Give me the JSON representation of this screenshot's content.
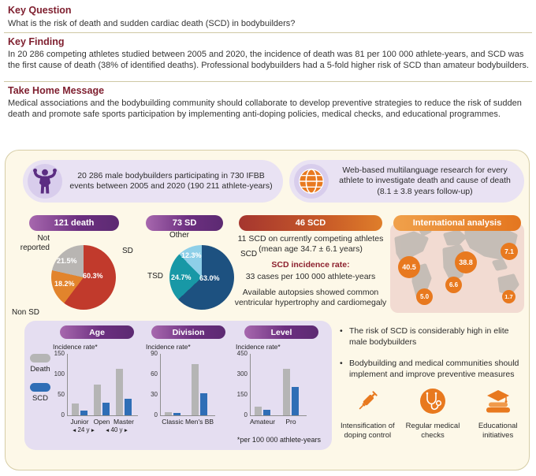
{
  "colors": {
    "heading_maroon": "#7e1e2e",
    "panel_cream": "#fdf8e8",
    "lavender_banner": "#e9e2f3",
    "lavender_box": "#e5def1",
    "rose_box": "#f2dbd2",
    "purple_pill": "#6c2f80",
    "red_pill": "#a5362f",
    "orange_accent": "#e8791f",
    "bar_death_gray": "#b5b5b5",
    "bar_scd_blue": "#2f6eb6"
  },
  "header": {
    "key_question": {
      "title": "Key Question",
      "text": "What is the risk of death and sudden cardiac death (SCD) in bodybuilders?"
    },
    "key_finding": {
      "title": "Key Finding",
      "text": "In 20 286 competing athletes studied between 2005 and 2020, the incidence of death was 81 per 100 000 athlete-years, and SCD was the first cause of death (38% of identified deaths). Professional bodybuilders had a 5-fold higher risk of SCD than amateur bodybuilders."
    },
    "take_home": {
      "title": "Take Home Message",
      "text": "Medical associations and the bodybuilding community should collaborate to develop preventive strategies to reduce the risk of sudden death and promote safe sports participation by implementing anti-doping policies, medical checks, and educational programmes."
    }
  },
  "banners": {
    "cohort": "20 286 male bodybuilders participating in 730 IFBB events between 2005 and 2020 (190 211 athlete-years)",
    "method": "Web-based multilanguage research for every athlete to investigate death and cause of death (8.1 ± 3.8 years follow-up)"
  },
  "scd_panel": {
    "line1": "11 SCD on currently competing athletes (mean age 34.7 ± 6.1 years)",
    "line2": "SCD incidence rate:",
    "line3": "33 cases per 100 000 athlete-years",
    "line4": "Available autopsies showed common ventricular hypertrophy and cardiomegaly"
  },
  "legend": {
    "death": "Death",
    "scd": "SCD"
  },
  "footnote": "*per 100 000 athlete-years",
  "bullets": [
    "The risk of SCD is considerably high in elite male bodybuilders",
    "Bodybuilding and medical communities should implement and improve preventive measures"
  ],
  "measures": [
    {
      "icon": "syringe-icon",
      "label": "Intensification of doping control"
    },
    {
      "icon": "stethoscope-icon",
      "label": "Regular medical checks"
    },
    {
      "icon": "education-icon",
      "label": "Educational initiatives"
    }
  ],
  "chart_data": [
    {
      "type": "pie",
      "title": "121 death",
      "slices": [
        {
          "label": "SD",
          "value": 60.3,
          "pct": "60.3%",
          "color": "#c13a2c"
        },
        {
          "label": "Non SD",
          "value": 18.2,
          "pct": "18.2%",
          "color": "#e2842c"
        },
        {
          "label": "Not reported",
          "value": 21.5,
          "pct": "21.5%",
          "color": "#b8b5b2"
        }
      ]
    },
    {
      "type": "pie",
      "title": "73 SD",
      "slices": [
        {
          "label": "SCD",
          "value": 63.0,
          "pct": "63.0%",
          "color": "#1d5180"
        },
        {
          "label": "TSD",
          "value": 24.7,
          "pct": "24.7%",
          "color": "#1898a6"
        },
        {
          "label": "Other",
          "value": 12.3,
          "pct": "12.3%",
          "color": "#8ecfe8"
        }
      ]
    },
    {
      "type": "bar",
      "title": "Age",
      "ylabel": "Incidence rate*",
      "ylim": [
        0,
        150
      ],
      "yticks": [
        0,
        50,
        100,
        150
      ],
      "categories": [
        "Junior",
        "Open",
        "Master"
      ],
      "series": [
        {
          "name": "Death",
          "color": "#b5b5b5",
          "values": [
            29,
            75,
            113
          ]
        },
        {
          "name": "SCD",
          "color": "#2f6eb6",
          "values": [
            12,
            30,
            41
          ]
        }
      ],
      "age_markers": [
        "24 y",
        "40 y"
      ]
    },
    {
      "type": "bar",
      "title": "Division",
      "ylabel": "Incidence rate*",
      "ylim": [
        0,
        90
      ],
      "yticks": [
        0,
        30,
        60,
        90
      ],
      "categories": [
        "Classic",
        "Men's BB"
      ],
      "series": [
        {
          "name": "Death",
          "color": "#b5b5b5",
          "values": [
            5,
            75
          ]
        },
        {
          "name": "SCD",
          "color": "#2f6eb6",
          "values": [
            3,
            32
          ]
        }
      ]
    },
    {
      "type": "bar",
      "title": "Level",
      "ylabel": "Incidence rate*",
      "ylim": [
        0,
        450
      ],
      "yticks": [
        0,
        150,
        300,
        450
      ],
      "categories": [
        "Amateur",
        "Pro"
      ],
      "series": [
        {
          "name": "Death",
          "color": "#b5b5b5",
          "values": [
            63,
            340
          ]
        },
        {
          "name": "SCD",
          "color": "#2f6eb6",
          "values": [
            40,
            205
          ]
        }
      ]
    },
    {
      "type": "map",
      "title": "International analysis",
      "points": [
        {
          "region": "North America",
          "value": "40.5"
        },
        {
          "region": "Europe",
          "value": "38.8"
        },
        {
          "region": "Asia",
          "value": "7.1"
        },
        {
          "region": "South America",
          "value": "5.0"
        },
        {
          "region": "Africa",
          "value": "6.6"
        },
        {
          "region": "Oceania",
          "value": "1.7"
        }
      ]
    }
  ]
}
